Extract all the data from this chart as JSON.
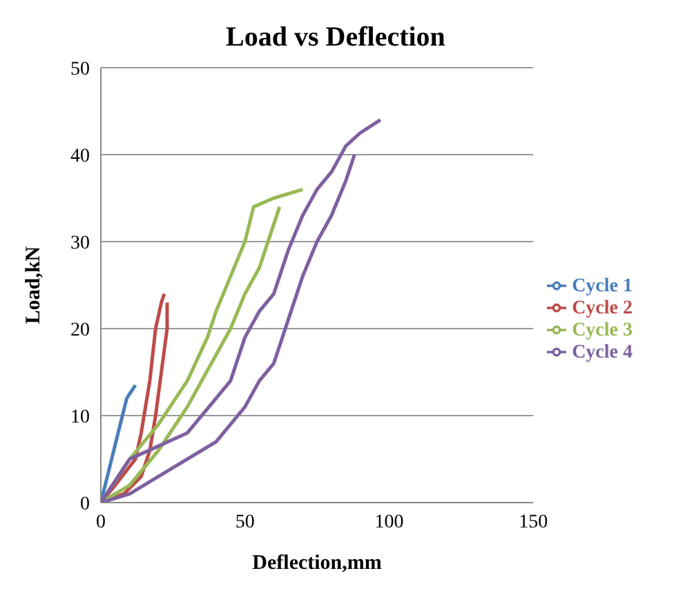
{
  "chart_data": {
    "type": "line",
    "title": "Load vs Deflection",
    "xlabel": "Deflection,mm",
    "ylabel": "Load,kN",
    "xlim": [
      0,
      150
    ],
    "xticks": [
      0,
      50,
      100,
      150
    ],
    "ylim": [
      0,
      50
    ],
    "yticks": [
      0,
      10,
      20,
      30,
      40,
      50
    ],
    "grid": "y",
    "legend": "right",
    "marker": "none",
    "line_style": "solid",
    "series": [
      {
        "name": "Cycle 1",
        "color": "#4a7ebb",
        "x": [
          0,
          3,
          6,
          9,
          12
        ],
        "values": [
          0,
          4,
          8,
          12,
          13.5
        ]
      },
      {
        "name": "Cycle 2",
        "color": "#be4b48",
        "x": [
          0,
          5,
          12,
          14,
          17,
          19,
          21,
          22
        ],
        "values": [
          0,
          2,
          5,
          8,
          14,
          20,
          23,
          24
        ]
      },
      {
        "color": "#be4b48",
        "x": [
          0,
          8,
          14,
          17,
          19,
          21,
          23,
          23
        ],
        "values": [
          0,
          1,
          3,
          6,
          10,
          15,
          20,
          23
        ]
      },
      {
        "name": "Cycle 3",
        "color": "#98b954",
        "x": [
          0,
          10,
          20,
          30,
          37,
          40,
          45,
          50,
          53,
          60,
          70
        ],
        "values": [
          0,
          5,
          9,
          14,
          19,
          22,
          26,
          30,
          34,
          35,
          36
        ]
      },
      {
        "color": "#98b954",
        "x": [
          0,
          10,
          20,
          30,
          40,
          45,
          50,
          55,
          62
        ],
        "values": [
          0,
          2,
          6,
          11,
          17,
          20,
          24,
          27,
          34
        ]
      },
      {
        "name": "Cycle 4",
        "color": "#7d60a0",
        "x": [
          0,
          10,
          20,
          30,
          40,
          45,
          50,
          55,
          60,
          65,
          70,
          75,
          80,
          85,
          90,
          97
        ],
        "values": [
          0,
          5,
          6.5,
          8,
          12,
          14,
          19,
          22,
          24,
          29,
          33,
          36,
          38,
          41,
          42.5,
          44
        ]
      },
      {
        "color": "#7d60a0",
        "x": [
          0,
          10,
          20,
          30,
          40,
          45,
          50,
          55,
          60,
          65,
          70,
          75,
          80,
          85,
          88
        ],
        "values": [
          0,
          1,
          3,
          5,
          7,
          9,
          11,
          14,
          16,
          21,
          26,
          30,
          33,
          37,
          40
        ]
      }
    ]
  }
}
